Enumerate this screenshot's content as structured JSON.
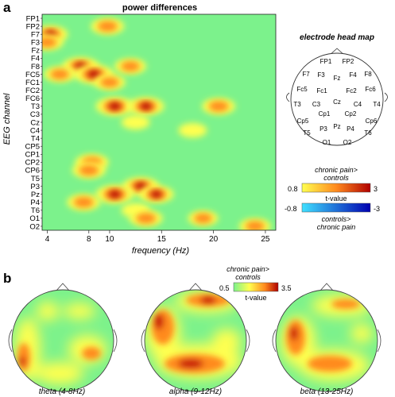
{
  "panel_a": {
    "letter": "a",
    "heatmap_title": "power differences",
    "head_map_title": "electrode head map",
    "head_map_electrodes": [
      "FP1",
      "FP2",
      "F7",
      "F3",
      "Fz",
      "F4",
      "F8",
      "Fc5",
      "Fc1",
      "Fc2",
      "Fc6",
      "T3",
      "C3",
      "Cz",
      "C4",
      "T4",
      "Cp1",
      "Cp2",
      "Cp5",
      "Cp6",
      "T5",
      "P3",
      "Pz",
      "P4",
      "T6",
      "O1",
      "O2"
    ]
  },
  "panel_b": {
    "letter": "b",
    "legend_top": "chronic pain>",
    "legend_top2": "controls",
    "legend_min": "0.5",
    "legend_max": "3.5",
    "legend_label": "t-value",
    "maps": [
      {
        "label": "theta (4-8Hz)"
      },
      {
        "label": "alpha (9-12Hz)"
      },
      {
        "label": "beta (13-25Hz)"
      }
    ]
  },
  "legend_a": {
    "pos_top": "chronic pain>",
    "pos_top2": "controls",
    "pos_min": "0.8",
    "pos_max": "3",
    "label": "t-value",
    "neg_min": "-0.8",
    "neg_max": "-3",
    "neg_bottom": "controls>",
    "neg_bottom2": "chronic pain"
  },
  "colors": {
    "background_green": "#7CF28C",
    "pos_low": "#FFFF50",
    "pos_mid": "#FF8A1E",
    "pos_high": "#B00000",
    "neg_low": "#40E0FF",
    "neg_high": "#0000B0"
  },
  "chart_data": {
    "type": "heatmap",
    "title": "power differences",
    "xlabel": "frequency (Hz)",
    "ylabel": "EEG channel",
    "x_ticks": [
      4,
      8,
      10,
      15,
      20,
      25
    ],
    "x_tick_labels": [
      "4",
      "8",
      "10",
      "15",
      "20",
      "25"
    ],
    "xlim": [
      3.5,
      26
    ],
    "y_categories": [
      "FP1",
      "FP2",
      "F7",
      "F3",
      "Fz",
      "F4",
      "F8",
      "FC5",
      "FC1",
      "FC2",
      "FC6",
      "T3",
      "C3",
      "Cz",
      "C4",
      "T4",
      "CP5",
      "CP1",
      "CP2",
      "CP6",
      "T5",
      "P3",
      "Pz",
      "P4",
      "T6",
      "O1",
      "O2"
    ],
    "value_label": "t-value",
    "hotspots": [
      {
        "channel": "FP2",
        "freq": 9.8,
        "t": 2.2
      },
      {
        "channel": "F7",
        "freq": 4.3,
        "t": 2.4
      },
      {
        "channel": "F3",
        "freq": 4.0,
        "t": 2.0
      },
      {
        "channel": "F8",
        "freq": 7.2,
        "t": 2.6
      },
      {
        "channel": "F8",
        "freq": 12.0,
        "t": 2.0
      },
      {
        "channel": "FC5",
        "freq": 8.5,
        "t": 3.0
      },
      {
        "channel": "FC5",
        "freq": 5.2,
        "t": 2.0
      },
      {
        "channel": "FC1",
        "freq": 10.0,
        "t": 2.0
      },
      {
        "channel": "T3",
        "freq": 10.5,
        "t": 2.8
      },
      {
        "channel": "T3",
        "freq": 13.5,
        "t": 2.6
      },
      {
        "channel": "T3",
        "freq": 20.5,
        "t": 2.2
      },
      {
        "channel": "Cz",
        "freq": 12.5,
        "t": 1.6
      },
      {
        "channel": "C4",
        "freq": 18.0,
        "t": 1.6
      },
      {
        "channel": "CP2",
        "freq": 8.3,
        "t": 2.2
      },
      {
        "channel": "CP6",
        "freq": 8.0,
        "t": 2.2
      },
      {
        "channel": "P3",
        "freq": 13.0,
        "t": 2.6
      },
      {
        "channel": "Pz",
        "freq": 10.5,
        "t": 2.8
      },
      {
        "channel": "Pz",
        "freq": 14.5,
        "t": 2.4
      },
      {
        "channel": "P4",
        "freq": 7.5,
        "t": 2.2
      },
      {
        "channel": "T6",
        "freq": 12.5,
        "t": 1.6
      },
      {
        "channel": "O1",
        "freq": 13.5,
        "t": 2.2
      },
      {
        "channel": "O1",
        "freq": 19.0,
        "t": 1.8
      },
      {
        "channel": "O2",
        "freq": 24.0,
        "t": 2.0
      }
    ]
  }
}
